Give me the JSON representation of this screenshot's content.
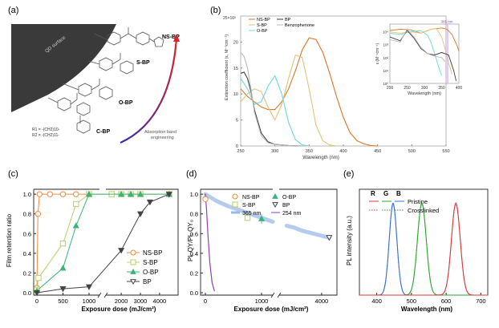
{
  "panel_a": {
    "label": "(a)",
    "qd_surface_label": "QD surface",
    "compounds": [
      {
        "name": "NS-BP",
        "color": "#e0202a"
      },
      {
        "name": "S-BP",
        "color": "#2fa12f"
      },
      {
        "name": "O-BP",
        "color": "#2a2ac0"
      },
      {
        "name": "C-BP",
        "color": "#222222"
      }
    ],
    "substituents": [
      "R1 = -(CH2)10-",
      "R2 = -(CH2)11-"
    ],
    "arrow_caption": [
      "Absorption band",
      "engineering"
    ],
    "arrow_colors": [
      "#3030b0",
      "#e0202a"
    ]
  },
  "chart_data": [
    {
      "id": "b",
      "label": "(b)",
      "type": "line",
      "xlabel": "Wavelength (nm)",
      "ylabel": "Extinction coefficient (ε, M⁻¹cm⁻¹)",
      "y_multiplier": "25×10³",
      "xlim": [
        250,
        550
      ],
      "ylim": [
        0,
        25
      ],
      "xticks": [
        250,
        300,
        350,
        400,
        450,
        500,
        550
      ],
      "yticks": [
        0,
        5,
        10,
        15,
        20
      ],
      "legend": [
        "NS-BP",
        "S-BP",
        "O-BP",
        "BP",
        "Benzophenone"
      ],
      "series": [
        {
          "name": "NS-BP",
          "color": "#d9762a",
          "x": [
            250,
            260,
            270,
            280,
            290,
            300,
            310,
            320,
            330,
            340,
            350,
            360,
            370,
            380,
            390,
            400,
            410,
            420,
            430,
            440,
            450
          ],
          "y": [
            11,
            9.5,
            8.5,
            7.5,
            7,
            7,
            8.5,
            11,
            14.5,
            18.5,
            20.8,
            20.5,
            18,
            14,
            9.5,
            5.5,
            2.5,
            1,
            0.4,
            0.1,
            0
          ]
        },
        {
          "name": "S-BP",
          "color": "#e2c27a",
          "x": [
            250,
            260,
            270,
            280,
            290,
            300,
            310,
            320,
            330,
            340,
            350,
            360,
            370,
            380,
            390
          ],
          "y": [
            8.5,
            10,
            11,
            10.5,
            7.5,
            5,
            8,
            13,
            17.5,
            17,
            11,
            4,
            1,
            0.2,
            0
          ]
        },
        {
          "name": "O-BP",
          "color": "#6fd8d4",
          "x": [
            250,
            260,
            270,
            280,
            290,
            300,
            310,
            320,
            330,
            340,
            350
          ],
          "y": [
            13,
            11,
            8,
            8.5,
            11.5,
            13.5,
            10,
            4.5,
            1.2,
            0.2,
            0
          ]
        },
        {
          "name": "BP",
          "color": "#3d3d3d",
          "x": [
            250,
            255,
            260,
            265,
            270,
            280,
            290,
            300,
            310,
            320,
            340
          ],
          "y": [
            14,
            14.2,
            13,
            10.5,
            7,
            2.5,
            0.8,
            0.3,
            0.2,
            0.1,
            0
          ]
        },
        {
          "name": "Benzophenone",
          "color": "#b8b8b8",
          "x": [
            250,
            255,
            260,
            265,
            270,
            280,
            290,
            300,
            310,
            320,
            340
          ],
          "y": [
            18,
            17.2,
            15,
            11,
            6.5,
            2,
            0.6,
            0.3,
            0.2,
            0.1,
            0
          ]
        }
      ],
      "inset": {
        "xlabel": "Wavelength (nm)",
        "ylabel": "ε (M⁻¹cm⁻¹)",
        "xlim": [
          200,
          400
        ],
        "xticks": [
          200,
          250,
          300,
          350,
          400
        ],
        "yticks": [
          "10⁰",
          "10¹",
          "10²",
          "10³",
          "10⁴"
        ],
        "ylim_log": [
          0,
          4.6
        ],
        "marker_label": "365 nm",
        "marker_x": 365,
        "series": [
          {
            "name": "NS-BP",
            "color": "#d9762a",
            "x": [
              200,
              230,
              260,
              290,
              320,
              350,
              365,
              380,
              395,
              400
            ],
            "y": [
              4.1,
              4.2,
              4.15,
              3.9,
              4.2,
              4.3,
              4.2,
              3.8,
              2.9,
              2.5
            ]
          },
          {
            "name": "S-BP",
            "color": "#e2c27a",
            "x": [
              200,
              230,
              260,
              290,
              320,
              335,
              350,
              360,
              370,
              380
            ],
            "y": [
              4.0,
              3.9,
              4.0,
              3.9,
              4.2,
              4.25,
              3.6,
              2.7,
              1.6,
              0.7
            ]
          },
          {
            "name": "O-BP",
            "color": "#6fd8d4",
            "x": [
              200,
              230,
              260,
              290,
              310,
              320,
              330,
              340,
              350
            ],
            "y": [
              3.9,
              3.8,
              4.0,
              4.1,
              3.7,
              3.1,
              2.3,
              1.4,
              0.6
            ]
          },
          {
            "name": "BP",
            "color": "#3d3d3d",
            "x": [
              200,
              230,
              250,
              270,
              290,
              310,
              330,
              350,
              370,
              385,
              392
            ],
            "y": [
              3.6,
              3.3,
              4.1,
              3.5,
              2.7,
              2.3,
              2.2,
              2.4,
              2.2,
              1.0,
              0.2
            ]
          },
          {
            "name": "Benzophenone",
            "color": "#b8b8b8",
            "x": [
              200,
              230,
              250,
              270,
              290,
              310,
              330,
              350,
              360
            ],
            "y": [
              3.4,
              3.2,
              4.2,
              3.6,
              2.8,
              2.3,
              2.1,
              2.0,
              1.7
            ]
          }
        ]
      }
    },
    {
      "id": "c",
      "label": "(c)",
      "type": "scatter",
      "xlabel": "Exposure dose (mJ/cm²)",
      "ylabel": "Film retention ratio",
      "ylim": [
        0,
        1.05
      ],
      "yticks": [
        0.0,
        0.2,
        0.4,
        0.6,
        0.8,
        1.0
      ],
      "axis_break": true,
      "x_left_range": [
        0,
        1200
      ],
      "x_right_range": [
        1200,
        4800
      ],
      "xticks_left": [
        0,
        500,
        1000
      ],
      "xticks_right": [
        2000,
        3000,
        4000
      ],
      "legend": [
        "NS-BP",
        "S-BP",
        "O-BP",
        "BP"
      ],
      "series": [
        {
          "name": "NS-BP",
          "color": "#f28a3a",
          "marker": "circle",
          "x": [
            0,
            20,
            50,
            250,
            500,
            750,
            1000
          ],
          "y": [
            0.05,
            0.8,
            1.0,
            1.0,
            1.0,
            1.0,
            1.0
          ]
        },
        {
          "name": "S-BP",
          "color": "#b9cf63",
          "marker": "square",
          "x": [
            0,
            30,
            500,
            750,
            1000,
            1500,
            2000,
            2500,
            3000,
            4500
          ],
          "y": [
            0.03,
            0.15,
            0.5,
            0.9,
            1.0,
            1.0,
            1.0,
            1.0,
            1.0,
            1.0
          ]
        },
        {
          "name": "O-BP",
          "color": "#3bb37a",
          "marker": "triangle",
          "x": [
            0,
            500,
            750,
            1000,
            2000,
            2500,
            3000,
            4500
          ],
          "y": [
            0.02,
            0.25,
            0.68,
            1.0,
            1.0,
            1.0,
            1.0,
            1.0
          ]
        },
        {
          "name": "BP",
          "color": "#444444",
          "marker": "triangle-down",
          "x": [
            0,
            500,
            1000,
            2000,
            3000,
            3500,
            4500
          ],
          "y": [
            0.0,
            0.04,
            0.06,
            0.43,
            0.8,
            0.92,
            1.0
          ]
        }
      ]
    },
    {
      "id": "d",
      "label": "(d)",
      "type": "scatter",
      "xlabel": "Exposure dose (mJ/cm²)",
      "ylabel": "PL QY/PL QY₀",
      "ylim": [
        0,
        1.05
      ],
      "yticks": [
        0.0,
        0.2,
        0.4,
        0.6,
        0.8,
        1.0
      ],
      "axis_break": true,
      "xticks": [
        0,
        1000,
        4000
      ],
      "legend": [
        "NS-BP",
        "O-BP",
        "S-BP",
        "BP",
        "365 nm",
        "254 nm"
      ],
      "series": [
        {
          "name": "NS-BP",
          "color": "#f28a3a",
          "marker": "circle",
          "x": [
            0
          ],
          "y": [
            0.95
          ]
        },
        {
          "name": "S-BP",
          "color": "#b9cf63",
          "marker": "square",
          "x": [
            750
          ],
          "y": [
            0.76
          ]
        },
        {
          "name": "O-BP",
          "color": "#3bb37a",
          "marker": "triangle",
          "x": [
            1000
          ],
          "y": [
            0.75
          ]
        },
        {
          "name": "BP",
          "color": "#444444",
          "marker": "triangle-down",
          "x": [
            4500
          ],
          "y": [
            0.56
          ]
        }
      ],
      "lines": [
        {
          "name": "365 nm",
          "color": "#9bb9e8",
          "x": [
            0,
            200,
            400,
            600,
            800,
            1000,
            1200
          ],
          "y": [
            1.0,
            0.93,
            0.88,
            0.84,
            0.8,
            0.76,
            0.72
          ]
        },
        {
          "name": "365 nm",
          "color": "#9bb9e8",
          "x": [
            1700,
            2200,
            2700,
            3200,
            3700,
            4200,
            4500
          ],
          "y": [
            0.68,
            0.66,
            0.63,
            0.61,
            0.59,
            0.57,
            0.56
          ]
        },
        {
          "name": "254 nm",
          "color": "#8f3fb5",
          "x": [
            0,
            20,
            50,
            80,
            120,
            160
          ],
          "y": [
            1.0,
            0.85,
            0.55,
            0.3,
            0.1,
            0.02
          ]
        }
      ]
    },
    {
      "id": "e",
      "label": "(e)",
      "type": "line",
      "xlabel": "Wavelength (nm)",
      "ylabel": "PL intensity (a.u.)",
      "xlim": [
        350,
        720
      ],
      "xticks": [
        400,
        500,
        600,
        700
      ],
      "ylim": [
        0,
        1.15
      ],
      "rgb_labels": [
        "R",
        "G",
        "B"
      ],
      "legend": [
        "Pristine",
        "Crosslinked"
      ],
      "series": [
        {
          "name": "Blue",
          "color": "#3a6fd8",
          "center": 447,
          "fwhm": 26
        },
        {
          "name": "Green",
          "color": "#2ea63a",
          "center": 530,
          "fwhm": 30
        },
        {
          "name": "Red",
          "color": "#d83a3a",
          "center": 628,
          "fwhm": 30
        }
      ]
    }
  ]
}
